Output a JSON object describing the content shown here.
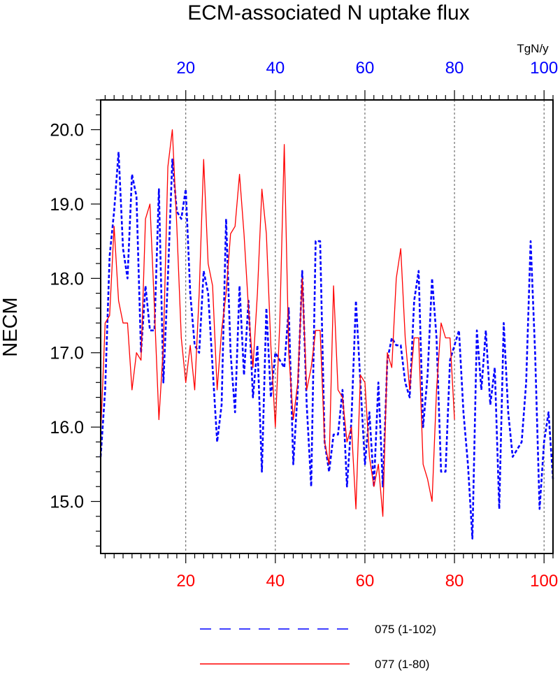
{
  "chart_data": {
    "type": "line",
    "title": "ECM-associated N uptake flux",
    "ylabel": "NECM",
    "top_axis_unit": "TgN/y",
    "xlim": [
      1,
      102
    ],
    "ylim": [
      14.3,
      20.4
    ],
    "xticks": [
      20,
      40,
      60,
      80,
      100
    ],
    "yticks": [
      15.0,
      16.0,
      17.0,
      18.0,
      19.0,
      20.0
    ],
    "ytick_labels": [
      "15.0",
      "16.0",
      "17.0",
      "18.0",
      "19.0",
      "20.0"
    ],
    "top_tick_color": "#0000ff",
    "bottom_tick_color": "#ff0000",
    "vertical_grid": true,
    "legend_position": "bottom",
    "series": [
      {
        "name": "075 (1-102)",
        "color": "#0000ff",
        "style": "dashed",
        "x": [
          1,
          2,
          3,
          4,
          5,
          6,
          7,
          8,
          9,
          10,
          11,
          12,
          13,
          14,
          15,
          16,
          17,
          18,
          19,
          20,
          21,
          22,
          23,
          24,
          25,
          26,
          27,
          28,
          29,
          30,
          31,
          32,
          33,
          34,
          35,
          36,
          37,
          38,
          39,
          40,
          41,
          42,
          43,
          44,
          45,
          46,
          47,
          48,
          49,
          50,
          51,
          52,
          53,
          54,
          55,
          56,
          57,
          58,
          59,
          60,
          61,
          62,
          63,
          64,
          65,
          66,
          67,
          68,
          69,
          70,
          71,
          72,
          73,
          74,
          75,
          76,
          77,
          78,
          79,
          80,
          81,
          82,
          83,
          84,
          85,
          86,
          87,
          88,
          89,
          90,
          91,
          92,
          93,
          94,
          95,
          96,
          97,
          98,
          99,
          100,
          101,
          102
        ],
        "values": [
          15.6,
          16.5,
          18.3,
          18.9,
          19.7,
          18.4,
          18.0,
          19.4,
          19.1,
          17.0,
          17.9,
          17.3,
          17.3,
          19.2,
          16.6,
          18.0,
          19.6,
          18.9,
          18.8,
          19.2,
          17.8,
          17.1,
          17.0,
          18.1,
          17.8,
          16.8,
          15.8,
          16.3,
          18.8,
          17.0,
          16.2,
          17.9,
          16.7,
          17.7,
          16.4,
          17.1,
          15.4,
          17.6,
          16.4,
          17.0,
          16.9,
          16.8,
          17.6,
          15.5,
          16.5,
          18.1,
          16.3,
          15.2,
          18.5,
          18.5,
          15.8,
          15.4,
          15.9,
          15.9,
          16.5,
          15.2,
          16.1,
          17.7,
          16.6,
          15.5,
          16.2,
          15.2,
          16.6,
          15.2,
          16.9,
          17.2,
          17.1,
          17.1,
          16.6,
          16.4,
          17.7,
          18.1,
          16.0,
          16.7,
          18.0,
          17.2,
          15.4,
          15.4,
          16.9,
          17.1,
          17.3,
          16.2,
          15.5,
          14.5,
          17.3,
          16.5,
          17.3,
          16.3,
          16.8,
          14.9,
          17.4,
          16.2,
          15.6,
          15.7,
          15.8,
          16.6,
          18.5,
          17.0,
          14.9,
          15.8,
          16.2,
          15.3
        ]
      },
      {
        "name": "077 (1-80)",
        "color": "#ff0000",
        "style": "solid",
        "x": [
          1,
          2,
          3,
          4,
          5,
          6,
          7,
          8,
          9,
          10,
          11,
          12,
          13,
          14,
          15,
          16,
          17,
          18,
          19,
          20,
          21,
          22,
          23,
          24,
          25,
          26,
          27,
          28,
          29,
          30,
          31,
          32,
          33,
          34,
          35,
          36,
          37,
          38,
          39,
          40,
          41,
          42,
          43,
          44,
          45,
          46,
          47,
          48,
          49,
          50,
          51,
          52,
          53,
          54,
          55,
          56,
          57,
          58,
          59,
          60,
          61,
          62,
          63,
          64,
          65,
          66,
          67,
          68,
          69,
          70,
          71,
          72,
          73,
          74,
          75,
          76,
          77,
          78,
          79,
          80
        ],
        "values": [
          15.9,
          17.4,
          17.5,
          18.7,
          17.7,
          17.4,
          17.4,
          16.5,
          17.0,
          16.9,
          18.8,
          19.0,
          17.6,
          16.1,
          17.1,
          19.5,
          20.0,
          18.7,
          17.2,
          16.6,
          17.1,
          16.5,
          17.8,
          19.6,
          18.2,
          17.9,
          16.5,
          17.3,
          17.8,
          18.6,
          18.7,
          19.4,
          18.6,
          17.6,
          16.8,
          17.8,
          19.2,
          18.6,
          17.1,
          16.0,
          17.4,
          19.8,
          17.0,
          16.1,
          16.6,
          18.0,
          16.5,
          16.8,
          17.3,
          17.3,
          15.8,
          15.5,
          17.9,
          16.5,
          16.4,
          15.8,
          16.0,
          14.9,
          16.7,
          16.6,
          15.6,
          15.2,
          15.5,
          14.8,
          17.0,
          16.8,
          18.0,
          18.4,
          17.2,
          16.5,
          17.2,
          17.2,
          15.5,
          15.3,
          15.0,
          16.5,
          17.4,
          17.2,
          17.2,
          16.1
        ]
      }
    ]
  }
}
